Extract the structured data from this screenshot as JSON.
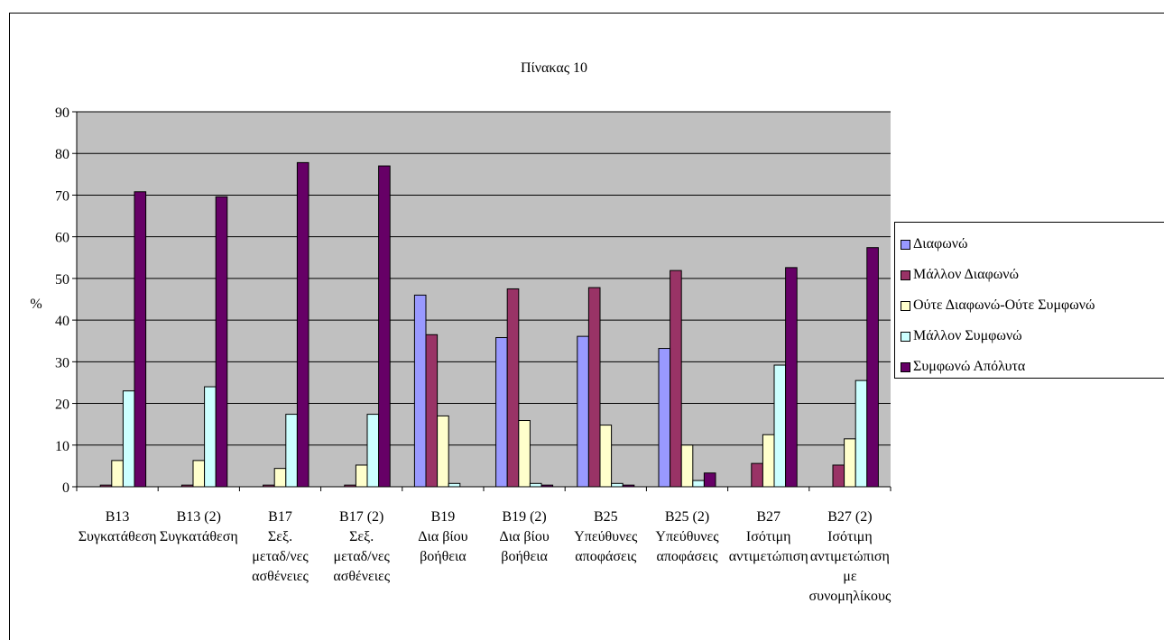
{
  "chart_data": {
    "type": "bar",
    "title": "Πίνακας 10",
    "xlabel": "",
    "ylabel": "%",
    "ylim": [
      0,
      90
    ],
    "yticks": [
      0,
      10,
      20,
      30,
      40,
      50,
      60,
      70,
      80,
      90
    ],
    "grid": true,
    "legend_position": "right",
    "categories": [
      [
        "B13",
        "Συγκατάθεση"
      ],
      [
        "B13 (2)",
        "Συγκατάθεση"
      ],
      [
        "B17",
        "Σεξ.",
        "μεταδ/νες",
        "ασθένειες"
      ],
      [
        "B17 (2)",
        "Σεξ.",
        "μεταδ/νες",
        "ασθένειες"
      ],
      [
        "B19",
        "Δια βίου",
        "βοήθεια"
      ],
      [
        "B19 (2)",
        "Δια βίου",
        "βοήθεια"
      ],
      [
        "B25",
        "Υπεύθυνες",
        "αποφάσεις"
      ],
      [
        "B25 (2)",
        "Υπεύθυνες",
        "αποφάσεις"
      ],
      [
        "B27",
        "Ισότιμη",
        "αντιμετώπιση"
      ],
      [
        "B27 (2)",
        "Ισότιμη",
        "αντιμετώπιση",
        "με",
        "συνομηλίκους"
      ]
    ],
    "series": [
      {
        "name": "Διαφωνώ",
        "color": "#9999ff",
        "values": [
          0,
          0,
          0,
          0,
          46,
          35.8,
          36.1,
          33.2,
          0,
          0
        ]
      },
      {
        "name": "Μάλλον Διαφωνώ",
        "color": "#993366",
        "values": [
          0.4,
          0.4,
          0.4,
          0.4,
          36.5,
          47.5,
          47.8,
          51.9,
          5.6,
          5.2
        ]
      },
      {
        "name": "Ούτε Διαφωνώ-Ούτε Συμφωνώ",
        "color": "#ffffcc",
        "values": [
          6.3,
          6.3,
          4.4,
          5.2,
          17,
          15.9,
          14.8,
          10,
          12.5,
          11.5
        ]
      },
      {
        "name": "Μάλλον Συμφωνώ",
        "color": "#ccffff",
        "values": [
          23,
          24,
          17.4,
          17.4,
          0.8,
          0.8,
          0.8,
          1.5,
          29.2,
          25.5
        ]
      },
      {
        "name": "Συμφωνώ Απόλυτα",
        "color": "#660066",
        "values": [
          70.8,
          69.6,
          77.8,
          77,
          0,
          0.4,
          0.4,
          3.3,
          52.6,
          57.4
        ]
      }
    ]
  }
}
